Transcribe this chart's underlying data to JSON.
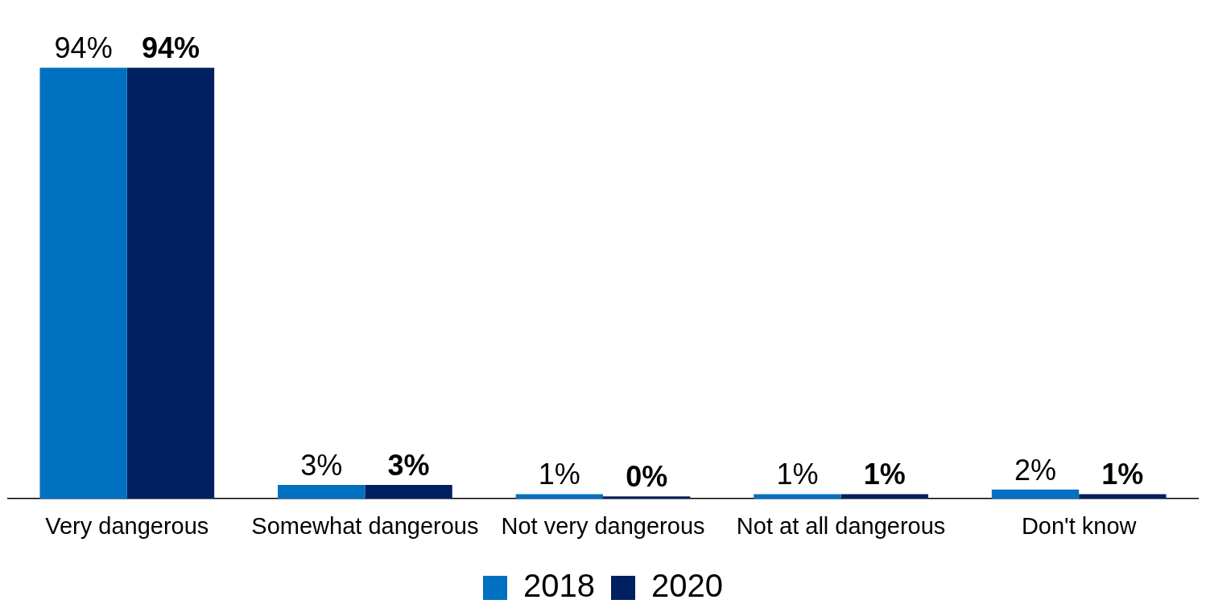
{
  "chart_data": {
    "type": "bar",
    "categories": [
      "Very dangerous",
      "Somewhat dangerous",
      "Not very dangerous",
      "Not at all dangerous",
      "Don't know"
    ],
    "series": [
      {
        "name": "2018",
        "color": "#0070c0",
        "values": [
          94,
          3,
          1,
          1,
          2
        ],
        "value_labels": [
          "94%",
          "3%",
          "1%",
          "1%",
          "2%"
        ]
      },
      {
        "name": "2020",
        "color": "#002060",
        "values": [
          94,
          3,
          0,
          1,
          1
        ],
        "value_labels": [
          "94%",
          "3%",
          "0%",
          "1%",
          "1%"
        ]
      }
    ],
    "tick_labels": "x",
    "grid": false,
    "legend": "bottom"
  }
}
